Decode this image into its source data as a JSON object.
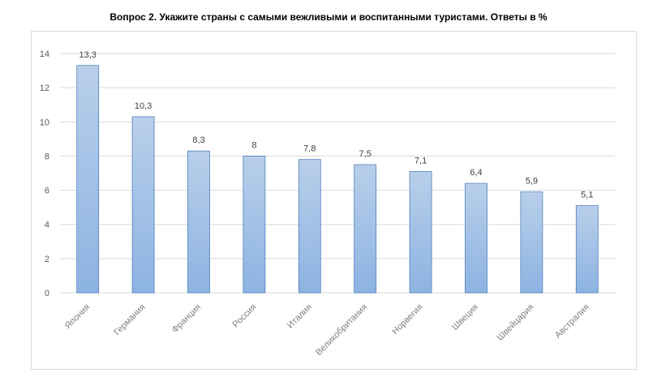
{
  "chart_data": {
    "type": "bar",
    "title": "Вопрос 2. Укажите страны с самыми вежливыми и воспитанными туристами. Ответы в %",
    "categories": [
      "Япония",
      "Германия",
      "Франция",
      "Россия",
      "Италия",
      "Великобритания",
      "Норвегия",
      "Швеция",
      "Швейцария",
      "Австралия"
    ],
    "values": [
      13.3,
      10.3,
      8.3,
      8,
      7.8,
      7.5,
      7.1,
      6.4,
      5.9,
      5.1
    ],
    "value_labels": [
      "13,3",
      "10,3",
      "8,3",
      "8",
      "7,8",
      "7,5",
      "7,1",
      "6,4",
      "5,9",
      "5,1"
    ],
    "ylim": [
      0,
      14
    ],
    "yticks": [
      "0",
      "2",
      "4",
      "6",
      "8",
      "10",
      "12",
      "14"
    ],
    "grid": true,
    "legend": "none",
    "colors": {
      "bar_top": "#b8cfea",
      "bar_bottom": "#8db3e2",
      "bar_border": "#4f81bd",
      "grid": "#d9d9d9"
    }
  }
}
